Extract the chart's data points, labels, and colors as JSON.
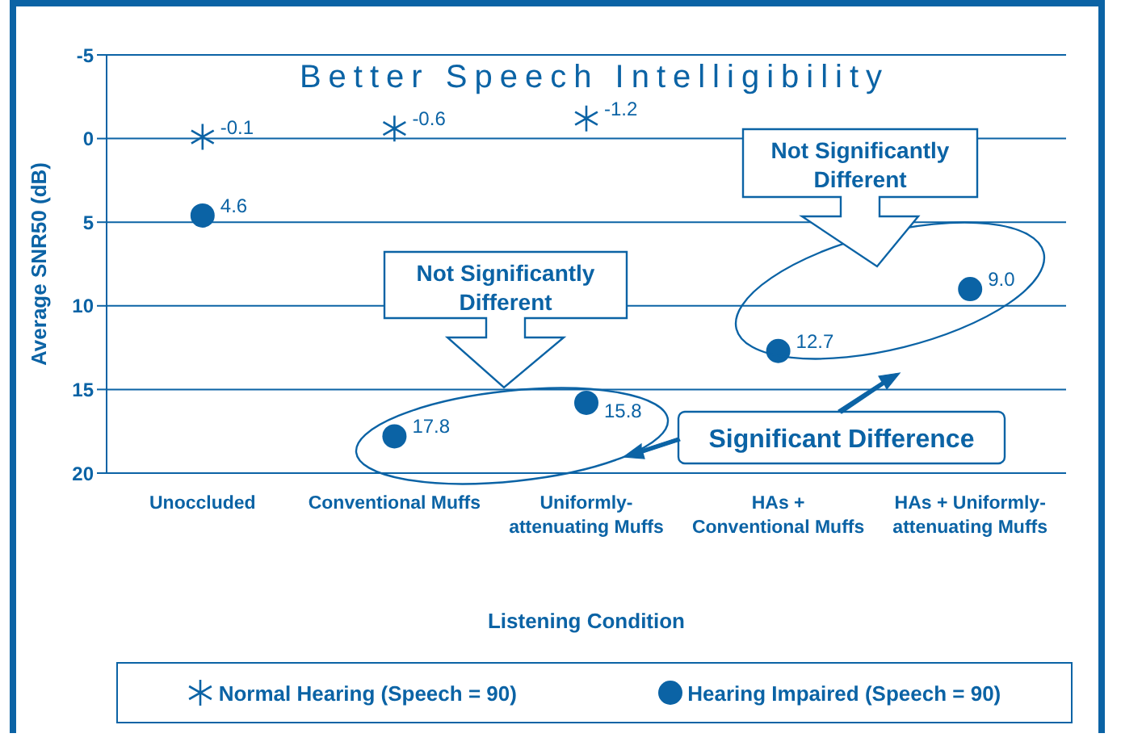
{
  "chart_data": {
    "type": "scatter",
    "title": "Better Speech Intelligibility",
    "xlabel": "Listening Condition",
    "ylabel": "Average SNR50 (dB)",
    "categories": [
      "Unoccluded",
      "Conventional Muffs",
      "Uniformly-\nattenuating Muffs",
      "HAs +\nConventional Muffs",
      "HAs + Uniformly-\nattenuating Muffs"
    ],
    "series": [
      {
        "name": "Normal Hearing (Speech = 90)",
        "color": "#0b63a5",
        "marker": "cross",
        "values": [
          -0.1,
          -0.6,
          -1.2,
          null,
          null
        ],
        "value_labels": [
          "-0.1",
          "-0.6",
          "-1.2",
          null,
          null
        ]
      },
      {
        "name": "Hearing Impaired (Speech = 90)",
        "color": "#0b63a5",
        "marker": "circle",
        "values": [
          4.6,
          17.8,
          15.8,
          12.7,
          9.0
        ],
        "value_labels": [
          "4.6",
          "17.8",
          "15.8",
          "12.7",
          "9.0"
        ]
      }
    ],
    "ylim": [
      20,
      -5
    ],
    "yticks": [
      -5,
      0,
      5,
      10,
      15,
      20
    ],
    "grid": "y",
    "legend": "bottom",
    "annotations": [
      "Not Significantly Different",
      "Not Significantly Different",
      "Significant Difference"
    ]
  }
}
